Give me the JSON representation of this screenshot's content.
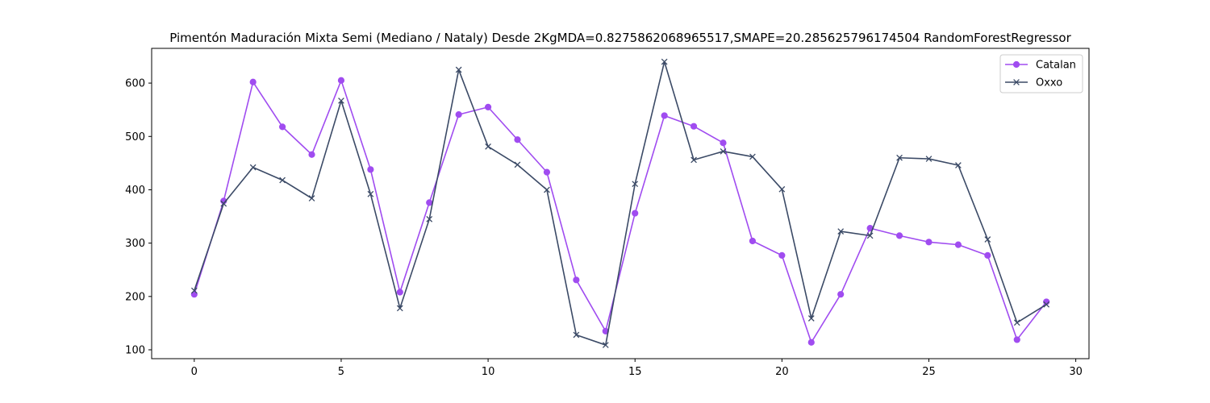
{
  "chart_data": {
    "type": "line",
    "title": "Pimentón Maduración Mixta Semi (Mediano / Nataly) Desde 2KgMDA=0.8275862068965517,SMAPE=20.285625796174504 RandomForestRegressor",
    "xlabel": "",
    "ylabel": "",
    "xlim": [
      -1.45,
      30.45
    ],
    "ylim": [
      83.4,
      665.1
    ],
    "xticks": [
      0,
      5,
      10,
      15,
      20,
      25,
      30
    ],
    "yticks": [
      100,
      200,
      300,
      400,
      500,
      600
    ],
    "grid": false,
    "legend_position": "top-right",
    "x": [
      0,
      1,
      2,
      3,
      4,
      5,
      6,
      7,
      8,
      9,
      10,
      11,
      12,
      13,
      14,
      15,
      16,
      17,
      18,
      19,
      20,
      21,
      22,
      23,
      24,
      25,
      26,
      27,
      28,
      29
    ],
    "series": [
      {
        "name": "Catalan",
        "color": "#a04cf0",
        "marker": "circle",
        "values": [
          204,
          379,
          602,
          518,
          466,
          605,
          438,
          208,
          376,
          541,
          555,
          494,
          433,
          231,
          135,
          356,
          539,
          519,
          488,
          304,
          277,
          114,
          204,
          328,
          314,
          302,
          297,
          277,
          119,
          190
        ]
      },
      {
        "name": "Oxxo",
        "color": "#3b4a66",
        "marker": "x",
        "values": [
          211,
          374,
          442,
          418,
          384,
          567,
          392,
          178,
          345,
          625,
          481,
          447,
          400,
          128,
          109,
          411,
          640,
          456,
          472,
          462,
          401,
          159,
          322,
          314,
          460,
          458,
          446,
          307,
          151,
          185
        ]
      }
    ]
  }
}
